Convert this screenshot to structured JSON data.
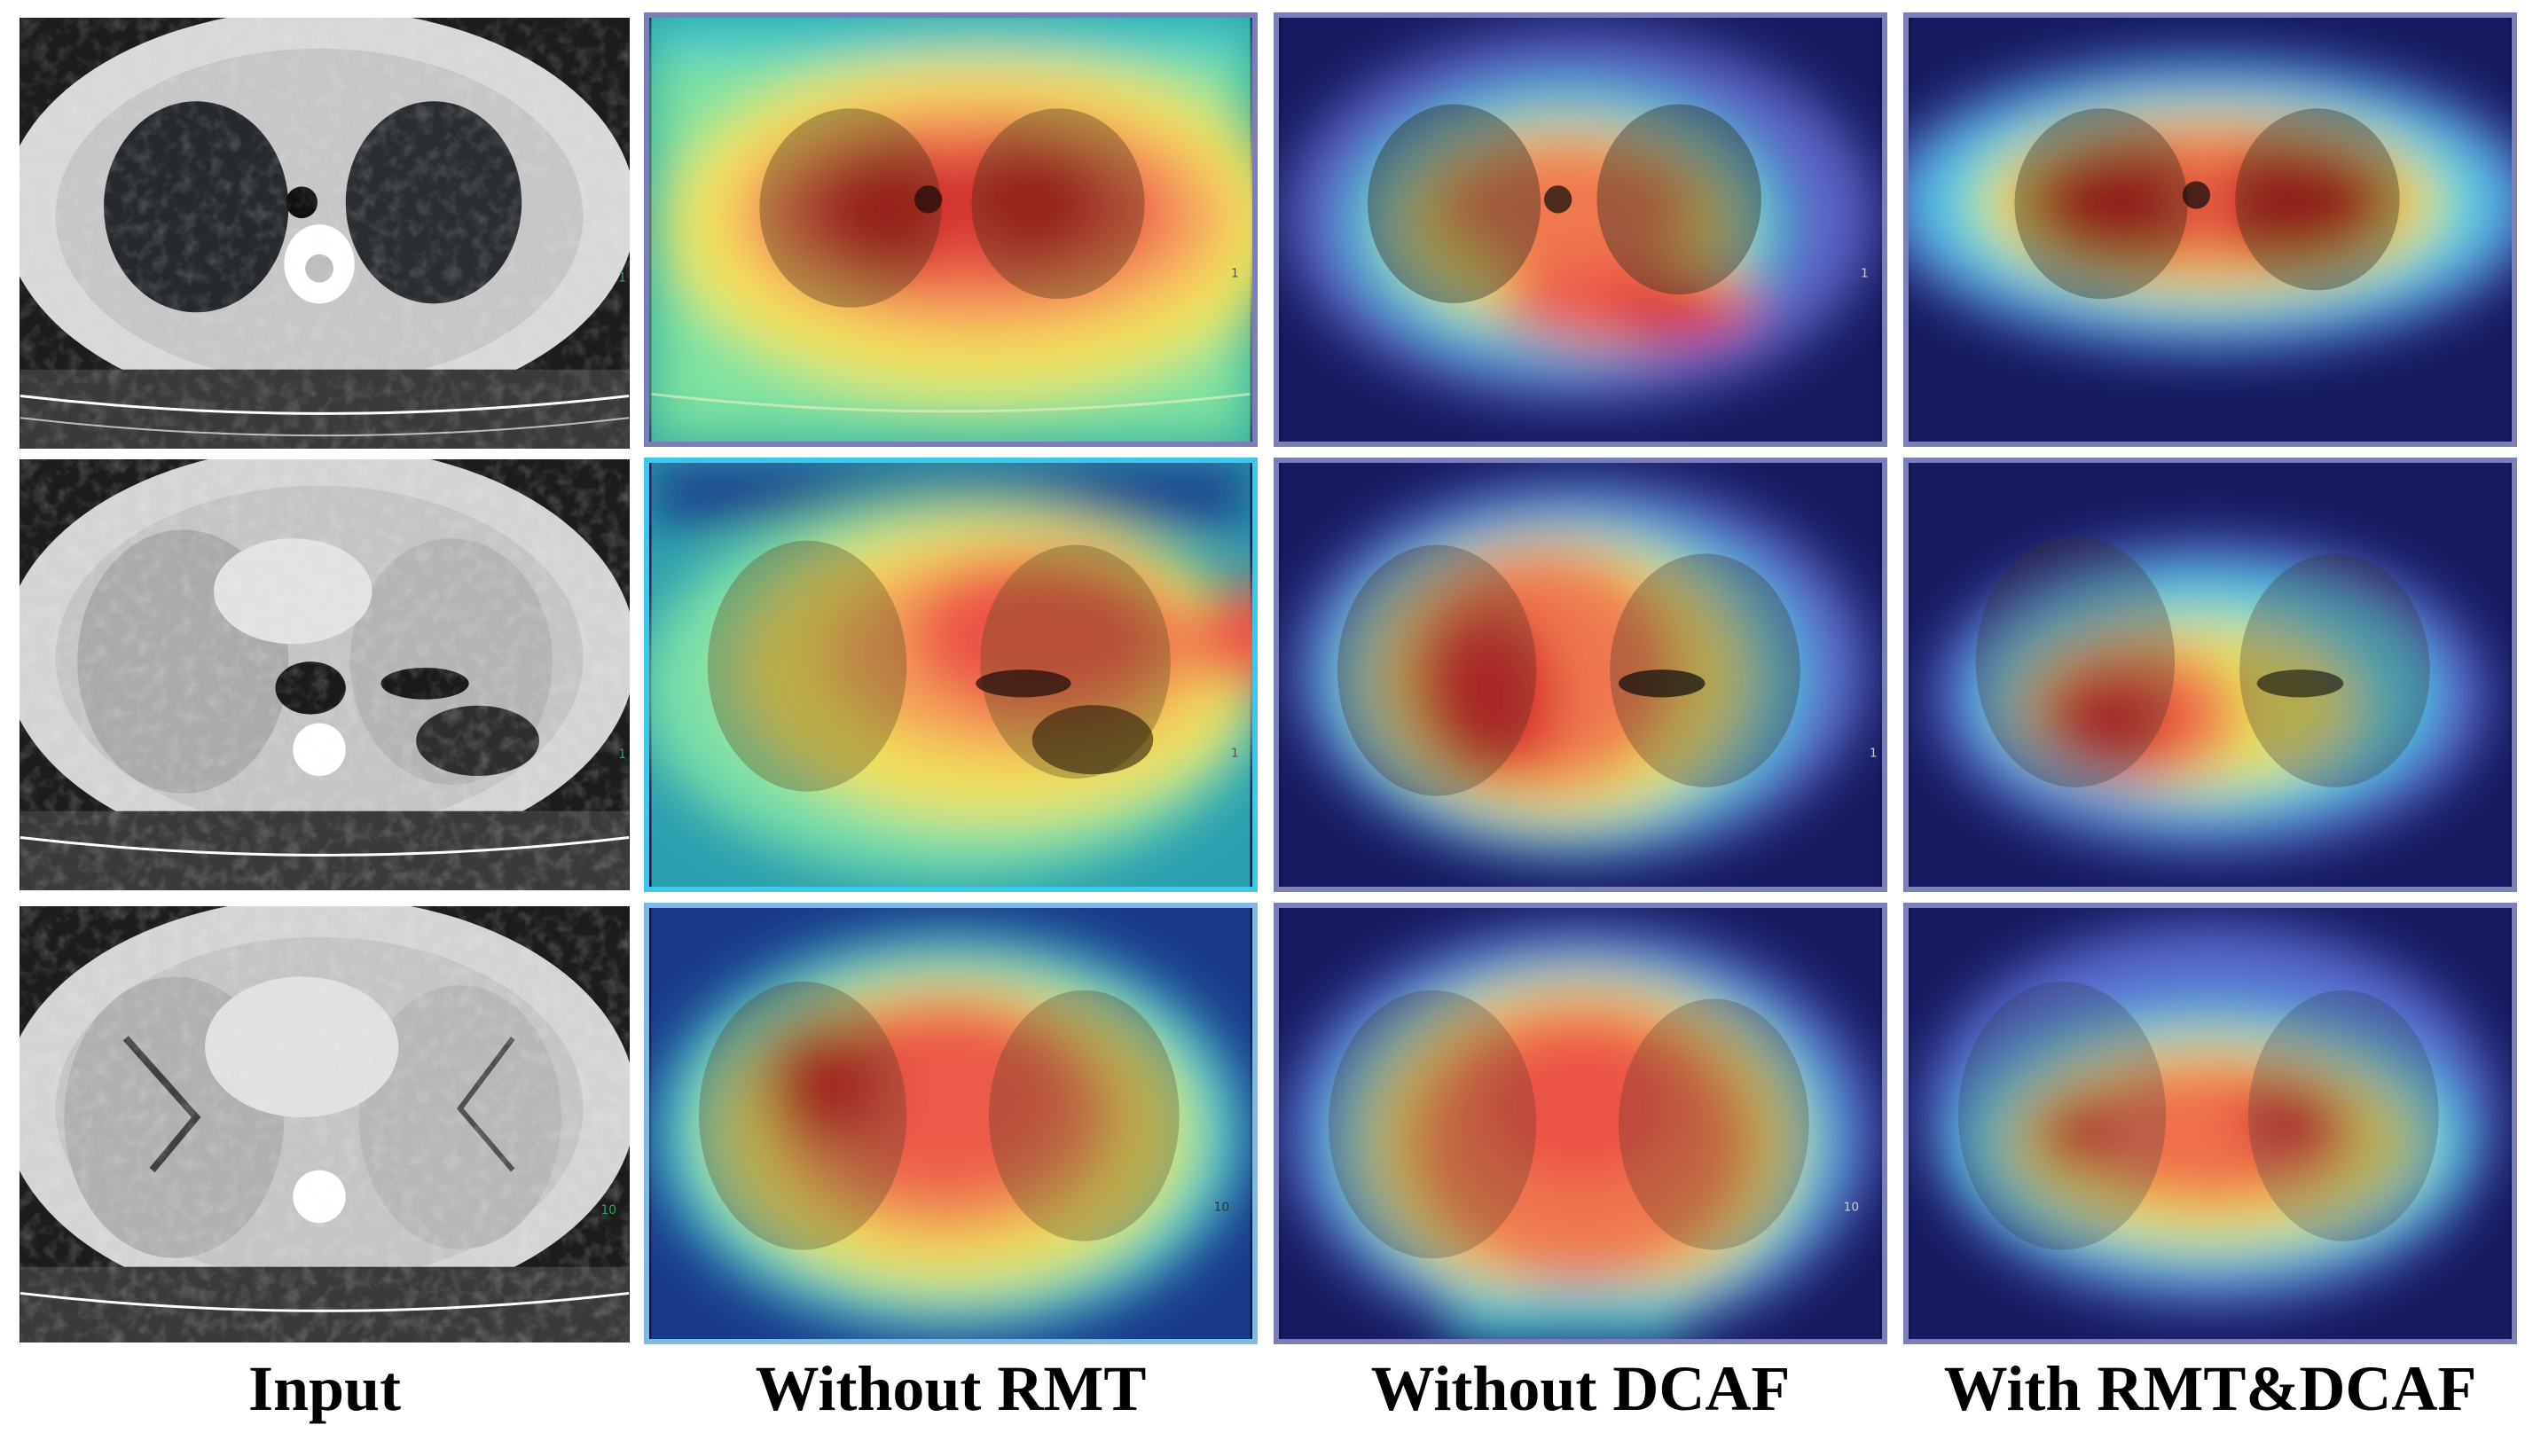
{
  "captions": {
    "input": "Input",
    "without_rmt": "Without RMT",
    "without_dcaf": "Without DCAF",
    "with_both": "With RMT&DCAF"
  },
  "image_marks": {
    "row1": "1",
    "row2": "1",
    "row3": "10"
  },
  "colors": {
    "heat_red": "#d81a1a",
    "heat_yellow": "#f4e44a",
    "heat_cyan": "#40e0e0",
    "heat_blue": "#1a1f7a"
  }
}
